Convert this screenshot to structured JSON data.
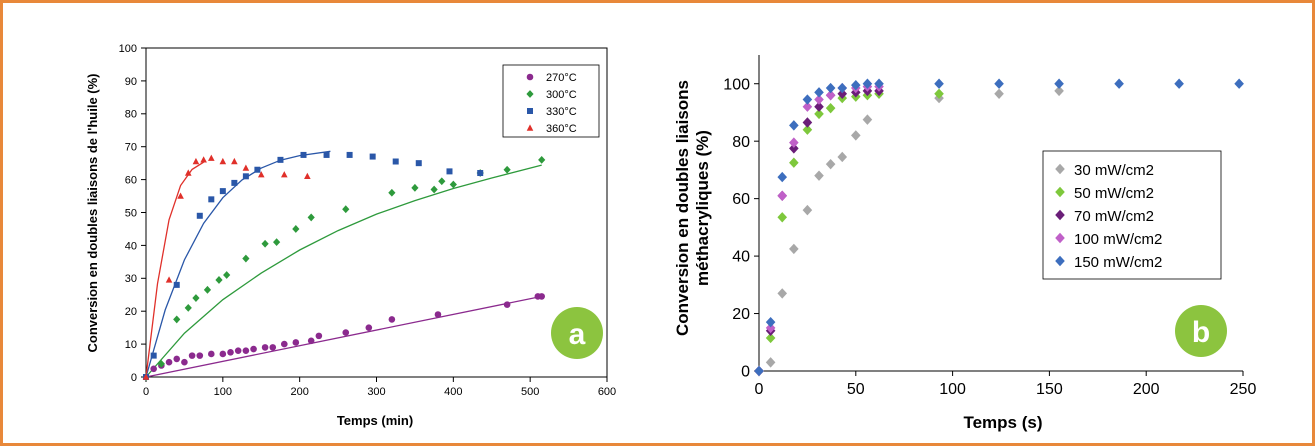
{
  "chart_data": [
    {
      "type": "scatter",
      "panel_label": "a",
      "xlabel": "Temps (min)",
      "ylabel": "Conversion en doubles liaisons de l'huile (%)",
      "xlim": [
        0,
        600
      ],
      "ylim": [
        0,
        100
      ],
      "xticks": [
        "0",
        "100",
        "200",
        "300",
        "400",
        "500",
        "600"
      ],
      "yticks": [
        "0",
        "10",
        "20",
        "30",
        "40",
        "50",
        "60",
        "70",
        "80",
        "90",
        "100"
      ],
      "grid": false,
      "legend_position": "top-right",
      "series": [
        {
          "name": "270°C",
          "color": "#8b2a8e",
          "marker": "circle",
          "x": [
            0,
            10,
            20,
            30,
            40,
            50,
            60,
            70,
            85,
            100,
            110,
            120,
            130,
            140,
            155,
            165,
            180,
            195,
            215,
            225,
            260,
            290,
            320,
            380,
            470,
            510,
            515
          ],
          "y": [
            0,
            2.5,
            3.5,
            4.5,
            5.5,
            4.5,
            6.5,
            6.5,
            7,
            7,
            7.5,
            8,
            8,
            8.5,
            9,
            9,
            10,
            10.5,
            11,
            12.5,
            13.5,
            15,
            17.5,
            19,
            22,
            24.5,
            24.5
          ]
        },
        {
          "name": "300°C",
          "color": "#2e9a3c",
          "marker": "diamond",
          "x": [
            0,
            20,
            40,
            55,
            65,
            80,
            95,
            105,
            130,
            155,
            170,
            195,
            215,
            260,
            320,
            350,
            375,
            385,
            400,
            435,
            470,
            515
          ],
          "y": [
            0,
            4,
            17.5,
            21,
            24,
            26.5,
            29.5,
            31,
            36,
            40.5,
            41,
            45,
            48.5,
            51,
            56,
            57.5,
            57,
            59.5,
            58.5,
            62,
            63,
            66
          ]
        },
        {
          "name": "330°C",
          "color": "#2a57a8",
          "marker": "square",
          "x": [
            0,
            10,
            40,
            70,
            85,
            100,
            115,
            130,
            145,
            175,
            205,
            235,
            265,
            295,
            325,
            355,
            395,
            435
          ],
          "y": [
            0,
            6.5,
            28,
            49,
            54,
            56.5,
            59,
            61,
            63,
            66,
            67.5,
            67.5,
            67.5,
            67,
            65.5,
            65,
            62.5,
            62
          ]
        },
        {
          "name": "360°C",
          "color": "#e0302a",
          "marker": "triangle",
          "x": [
            0,
            30,
            45,
            55,
            65,
            75,
            85,
            100,
            115,
            130,
            150,
            180,
            210
          ],
          "y": [
            0,
            29.5,
            55,
            62,
            65.5,
            66,
            66.5,
            65.5,
            65.5,
            63.5,
            61.5,
            61.5,
            61
          ]
        }
      ],
      "fit_lines": [
        {
          "color": "#8b2a8e",
          "x": [
            0,
            515
          ],
          "y": [
            0,
            24.5
          ]
        },
        {
          "color": "#2e9a3c",
          "x": [
            0,
            50,
            100,
            150,
            200,
            250,
            300,
            350,
            400,
            450,
            515
          ],
          "y": [
            0,
            13.3,
            23.5,
            31.6,
            38.6,
            44.5,
            49.5,
            53.6,
            57.3,
            60.5,
            64.4
          ]
        },
        {
          "color": "#2a57a8",
          "x": [
            0,
            25,
            50,
            75,
            100,
            125,
            150,
            175,
            200,
            240
          ],
          "y": [
            0,
            20.4,
            35.6,
            46.7,
            54.5,
            59.9,
            63.5,
            65.9,
            67.3,
            68.6
          ]
        },
        {
          "color": "#e0302a",
          "x": [
            0,
            15,
            30,
            45,
            60,
            75
          ],
          "y": [
            0,
            28.4,
            47.8,
            58.2,
            63.1,
            65.3
          ]
        }
      ]
    },
    {
      "type": "scatter",
      "panel_label": "b",
      "xlabel": "Temps (s)",
      "ylabel_lines": [
        "Conversion en doubles liaisons",
        "méthacryliques (%)"
      ],
      "xlim": [
        0,
        250
      ],
      "ylim": [
        0,
        110
      ],
      "xticks": [
        "0",
        "50",
        "100",
        "150",
        "200",
        "250"
      ],
      "yticks": [
        "0",
        "20",
        "40",
        "60",
        "80",
        "100"
      ],
      "grid": false,
      "legend_position": "center-right",
      "series": [
        {
          "name": "30 mW/cm2",
          "color": "#a8a8a8",
          "marker": "diamond",
          "x": [
            0,
            6,
            12,
            18,
            25,
            31,
            37,
            43,
            50,
            56,
            93,
            124,
            155
          ],
          "y": [
            0,
            3,
            27,
            42.5,
            56,
            68,
            72,
            74.5,
            82,
            87.5,
            95,
            96.5,
            97.5
          ]
        },
        {
          "name": "50 mW/cm2",
          "color": "#7ec83c",
          "marker": "diamond",
          "x": [
            0,
            6,
            12,
            18,
            25,
            31,
            37,
            43,
            50,
            56,
            62,
            93
          ],
          "y": [
            0,
            11.5,
            53.5,
            72.5,
            84,
            89.5,
            91.5,
            95,
            95.5,
            96,
            96.5,
            96.5
          ]
        },
        {
          "name": "70 mW/cm2",
          "color": "#6a1e78",
          "marker": "diamond",
          "x": [
            0,
            6,
            12,
            18,
            25,
            31,
            37,
            43,
            50,
            56,
            62
          ],
          "y": [
            0,
            14,
            61,
            77.5,
            86.5,
            92,
            96,
            96.5,
            97,
            97.5,
            97.5
          ]
        },
        {
          "name": "100 mW/cm2",
          "color": "#c060c8",
          "marker": "diamond",
          "x": [
            0,
            6,
            12,
            18,
            25,
            31,
            37,
            43,
            50,
            56,
            62
          ],
          "y": [
            0,
            15,
            61,
            79.5,
            92,
            94.5,
            96,
            98.5,
            98.5,
            99,
            99
          ]
        },
        {
          "name": "150 mW/cm2",
          "color": "#3d6ebe",
          "marker": "diamond",
          "x": [
            0,
            6,
            12,
            18,
            25,
            31,
            37,
            43,
            50,
            56,
            62,
            93,
            124,
            155,
            186,
            217,
            248
          ],
          "y": [
            0,
            17,
            67.5,
            85.5,
            94.5,
            97,
            98.5,
            98.5,
            99.5,
            100,
            100,
            100,
            100,
            100,
            100,
            100,
            100
          ]
        }
      ]
    }
  ],
  "colors": {
    "frame_border": "#e8883a",
    "badge": "#8cc43f"
  }
}
